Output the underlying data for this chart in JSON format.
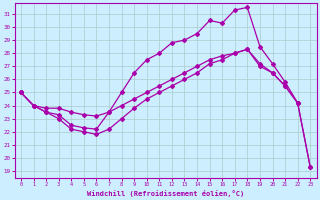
{
  "xlabel": "Windchill (Refroidissement éolien,°C)",
  "bg_color": "#cceeff",
  "line_color": "#aa00aa",
  "grid_color": "#aacccc",
  "xlim": [
    -0.5,
    23.5
  ],
  "ylim": [
    18.5,
    31.8
  ],
  "yticks": [
    19,
    20,
    21,
    22,
    23,
    24,
    25,
    26,
    27,
    28,
    29,
    30,
    31
  ],
  "xticks": [
    0,
    1,
    2,
    3,
    4,
    5,
    6,
    7,
    8,
    9,
    10,
    11,
    12,
    13,
    14,
    15,
    16,
    17,
    18,
    19,
    20,
    21,
    22,
    23
  ],
  "line_top_x": [
    0,
    1,
    2,
    3,
    4,
    5,
    6,
    7,
    8,
    9,
    10,
    11,
    12,
    13,
    14,
    15,
    16,
    17,
    18,
    19,
    20,
    21,
    22,
    23
  ],
  "line_top_y": [
    25.0,
    24.0,
    23.5,
    23.3,
    22.5,
    22.3,
    22.2,
    23.5,
    25.0,
    26.5,
    27.5,
    28.0,
    28.8,
    29.0,
    29.5,
    30.5,
    30.3,
    31.3,
    31.5,
    28.5,
    27.2,
    25.8,
    24.2,
    19.3
  ],
  "line_mid_x": [
    0,
    1,
    2,
    3,
    4,
    5,
    6,
    7,
    8,
    9,
    10,
    11,
    12,
    13,
    14,
    15,
    16,
    17,
    18,
    19,
    20,
    21,
    22
  ],
  "line_mid_y": [
    25.0,
    24.0,
    23.8,
    23.8,
    23.5,
    23.3,
    23.2,
    23.5,
    24.0,
    24.5,
    25.0,
    25.5,
    26.0,
    26.5,
    27.0,
    27.5,
    27.8,
    28.0,
    28.3,
    27.2,
    26.5,
    25.5,
    24.2
  ],
  "line_bot_x": [
    0,
    1,
    2,
    3,
    4,
    5,
    6,
    7,
    8,
    9,
    10,
    11,
    12,
    13,
    14,
    15,
    16,
    17,
    18,
    19,
    20,
    21,
    22,
    23
  ],
  "line_bot_y": [
    25.0,
    24.0,
    23.5,
    23.0,
    22.2,
    22.0,
    21.8,
    22.2,
    23.0,
    23.8,
    24.5,
    25.0,
    25.5,
    26.0,
    26.5,
    27.2,
    27.5,
    28.0,
    28.3,
    27.0,
    26.5,
    25.5,
    24.2,
    19.3
  ]
}
